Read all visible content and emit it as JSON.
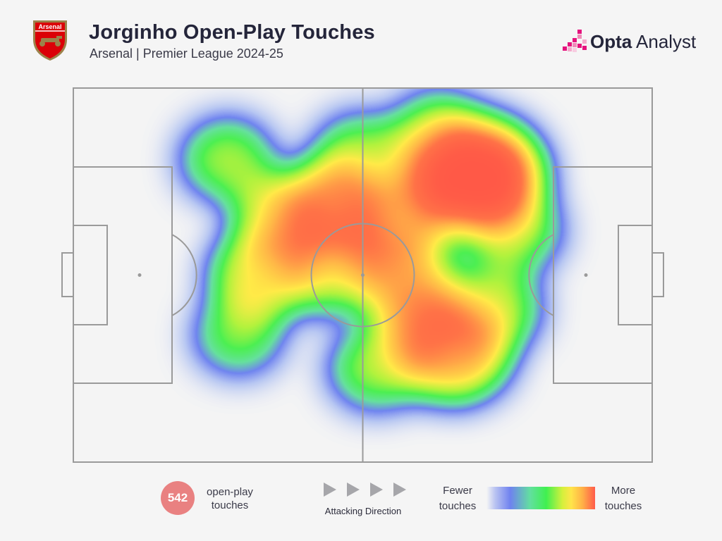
{
  "header": {
    "title": "Jorginho Open-Play Touches",
    "subtitle": "Arsenal | Premier League 2024-25",
    "crest_text": "Arsenal",
    "brand_name_bold": "Opta",
    "brand_name_regular": " Analyst"
  },
  "colors": {
    "background": "#f5f5f5",
    "pitch_lines": "#9a9a9a",
    "count_circle": "#e98181",
    "crest_red": "#db0007",
    "crest_gold": "#9c824a",
    "brand_pink": "#e5127d"
  },
  "legend": {
    "count": "542",
    "count_label": "open-play touches",
    "direction_label": "Attacking Direction",
    "scale_low": "Fewer touches",
    "scale_high": "More touches"
  },
  "chart_data": {
    "type": "heatmap",
    "title": "Jorginho Open-Play Touches",
    "subtitle": "Arsenal | Premier League 2024-25",
    "total_touches": 542,
    "pitch_length": 105,
    "pitch_width": 68,
    "attacking_direction": "left-to-right",
    "scale": [
      "Fewer touches",
      "More touches"
    ],
    "hotspots": [
      {
        "x": 73,
        "y": 16,
        "intensity": 1.0
      },
      {
        "x": 69,
        "y": 17,
        "intensity": 0.55
      },
      {
        "x": 47,
        "y": 22,
        "intensity": 0.65
      },
      {
        "x": 69,
        "y": 48,
        "intensity": 0.65
      },
      {
        "x": 34,
        "y": 34,
        "intensity": 0.45
      },
      {
        "x": 47,
        "y": 33,
        "intensity": 0.4
      },
      {
        "x": 60,
        "y": 34,
        "intensity": 0.45
      },
      {
        "x": 38,
        "y": 24,
        "intensity": 0.4
      },
      {
        "x": 58,
        "y": 25,
        "intensity": 0.45
      },
      {
        "x": 63,
        "y": 42,
        "intensity": 0.4
      },
      {
        "x": 76,
        "y": 40,
        "intensity": 0.35
      },
      {
        "x": 80,
        "y": 26,
        "intensity": 0.3
      },
      {
        "x": 28,
        "y": 13,
        "intensity": 0.3
      },
      {
        "x": 66,
        "y": 8,
        "intensity": 0.3
      },
      {
        "x": 30,
        "y": 45,
        "intensity": 0.22
      },
      {
        "x": 55,
        "y": 51,
        "intensity": 0.3
      },
      {
        "x": 52,
        "y": 12,
        "intensity": 0.28
      }
    ]
  }
}
